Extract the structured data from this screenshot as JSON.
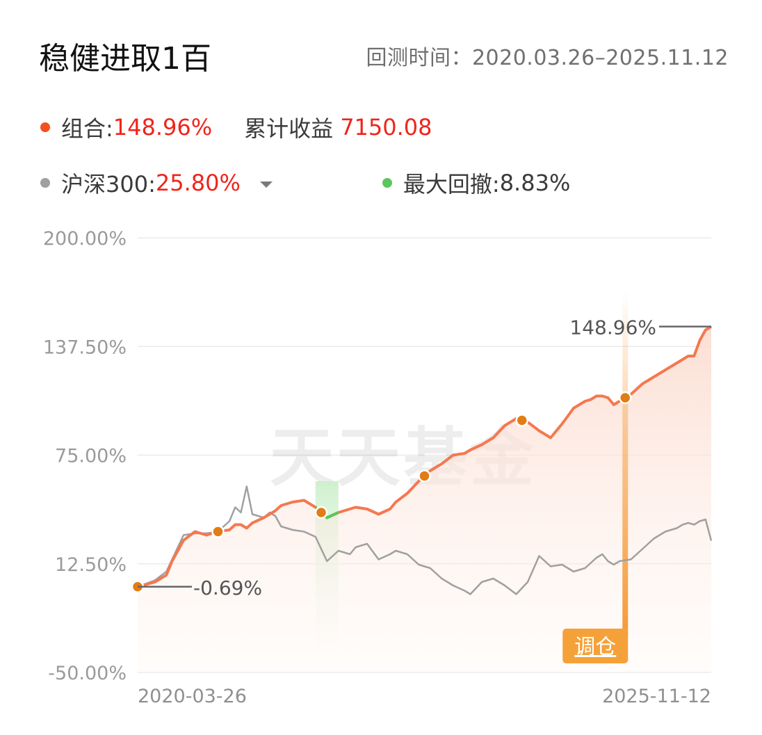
{
  "header": {
    "title": "稳健进取1百",
    "range_label": "回测时间：",
    "range_value": "2020.03.26–2025.11.12"
  },
  "legend": {
    "portfolio_label": "组合:",
    "portfolio_value": "148.96%",
    "cumulative_label": "累计收益",
    "cumulative_value": "7150.08",
    "benchmark_label": "沪深300:",
    "benchmark_value": "25.80%",
    "drawdown_label": "最大回撤:",
    "drawdown_value": "8.83%"
  },
  "colors": {
    "portfolio": "#f4501e",
    "portfolio_line": "#f5784f",
    "benchmark": "#a0a0a0",
    "drawdown": "#5cc65c",
    "marker": "#e07d16",
    "badge": "#f5a13a",
    "value_red": "#f0241b"
  },
  "watermark": "天天基金",
  "chart_data": {
    "type": "line",
    "x_start": "2020-03-26",
    "x_end": "2025-11-12",
    "x": [
      0,
      3,
      5,
      6,
      8,
      10,
      12,
      14,
      16,
      17,
      18,
      19,
      20,
      22,
      23,
      24,
      25,
      26,
      27,
      29,
      31,
      33,
      35,
      37,
      38,
      40,
      42,
      44,
      45,
      47,
      49,
      51,
      53,
      55,
      57,
      58,
      60,
      62,
      64,
      66,
      68,
      70,
      72,
      74,
      76,
      78,
      79,
      80,
      81,
      82,
      83,
      84,
      86,
      88,
      90,
      92,
      94,
      95,
      96,
      97,
      98,
      99,
      100
    ],
    "series": [
      {
        "name": "组合",
        "values": [
          -0.7,
          2,
          6,
          14,
          26,
          31,
          29,
          31,
          32,
          35,
          35,
          33,
          36,
          39,
          41,
          43,
          46,
          47,
          48,
          49,
          45,
          39,
          42,
          44,
          45,
          44,
          41,
          44,
          48,
          53,
          60,
          66,
          70,
          75,
          76,
          78,
          81,
          85,
          92,
          96,
          94,
          89,
          85,
          93,
          102,
          106,
          107,
          109,
          109,
          108,
          104,
          106,
          110,
          116,
          120,
          124,
          128,
          130,
          132,
          132,
          141,
          147,
          148.96
        ]
      },
      {
        "name": "沪深300",
        "values": [
          -0.7,
          3,
          8,
          15,
          29,
          30,
          30,
          31,
          37,
          45,
          42,
          57,
          41,
          39,
          42,
          40,
          34,
          33,
          32,
          31,
          28,
          14,
          20,
          18,
          22,
          24,
          15,
          18,
          20,
          18,
          12,
          10,
          4,
          0,
          -3,
          -5,
          2,
          4,
          0,
          -5,
          2,
          17,
          11,
          12,
          8,
          10,
          13,
          16,
          18,
          14,
          12,
          14,
          15,
          21,
          27,
          31,
          33,
          35,
          36,
          35,
          37,
          38,
          25.8
        ]
      }
    ],
    "y_ticks": [
      "200.00%",
      "137.50%",
      "75.00%",
      "12.50%",
      "-50.00%"
    ],
    "ylim": [
      -50,
      200
    ],
    "x_ticks": [
      "2020-03-26",
      "2025-11-12"
    ],
    "drawdown_period": [
      31,
      35
    ],
    "markers": [
      0,
      14,
      32,
      50,
      67,
      85
    ],
    "rebalance_at": 85,
    "start_annotation": "-0.69%",
    "end_annotation": "148.96%",
    "rebalance_label": "调仓",
    "grid": true
  }
}
